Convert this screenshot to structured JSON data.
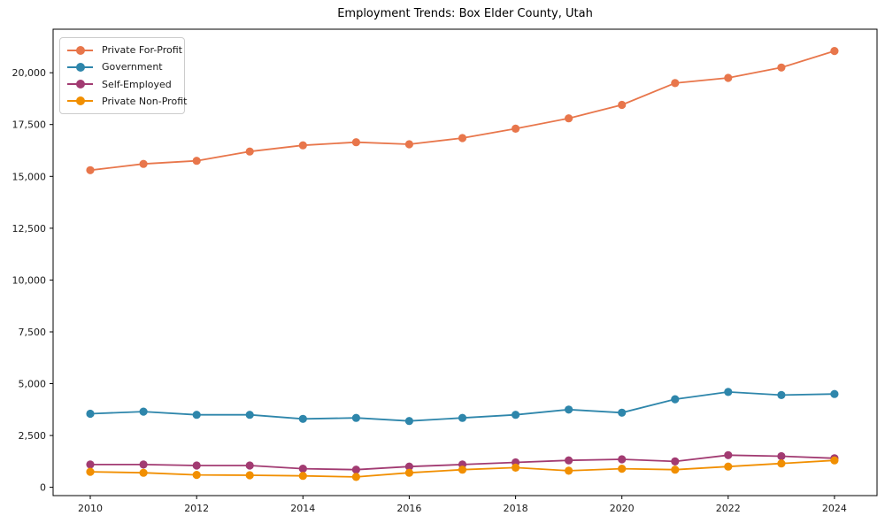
{
  "chart_data": {
    "type": "line",
    "title": "Employment Trends: Box Elder County, Utah",
    "xlabel": "",
    "ylabel": "",
    "x": [
      2010,
      2011,
      2012,
      2013,
      2014,
      2015,
      2016,
      2017,
      2018,
      2019,
      2020,
      2021,
      2022,
      2023,
      2024
    ],
    "series": [
      {
        "name": "Private For-Profit",
        "color": "#E8764B",
        "values": [
          15300,
          15600,
          15750,
          16200,
          16500,
          16650,
          16550,
          16850,
          17300,
          17800,
          18450,
          19500,
          19750,
          20250,
          21050
        ]
      },
      {
        "name": "Government",
        "color": "#2E86AB",
        "values": [
          3550,
          3650,
          3500,
          3500,
          3300,
          3350,
          3200,
          3350,
          3500,
          3750,
          3600,
          4250,
          4600,
          4450,
          4500
        ]
      },
      {
        "name": "Self-Employed",
        "color": "#A23B72",
        "values": [
          1100,
          1100,
          1050,
          1050,
          900,
          850,
          1000,
          1100,
          1200,
          1300,
          1350,
          1250,
          1550,
          1500,
          1400
        ]
      },
      {
        "name": "Private Non-Profit",
        "color": "#F18F01",
        "values": [
          750,
          700,
          600,
          580,
          550,
          500,
          700,
          850,
          950,
          800,
          900,
          850,
          1000,
          1150,
          1300
        ]
      }
    ],
    "xticks": [
      2010,
      2012,
      2014,
      2016,
      2018,
      2020,
      2022,
      2024
    ],
    "xtick_labels": [
      "2010",
      "2012",
      "2014",
      "2016",
      "2018",
      "2020",
      "2022",
      "2024"
    ],
    "yticks": [
      0,
      2500,
      5000,
      7500,
      10000,
      12500,
      15000,
      17500,
      20000
    ],
    "ytick_labels": [
      "0",
      "2,500",
      "5,000",
      "7,500",
      "10,000",
      "12,500",
      "15,000",
      "17,500",
      "20,000"
    ],
    "xlim": [
      2009.3,
      2024.8
    ],
    "ylim": [
      -400,
      22100
    ],
    "grid": false,
    "legend_position": "upper-left"
  }
}
